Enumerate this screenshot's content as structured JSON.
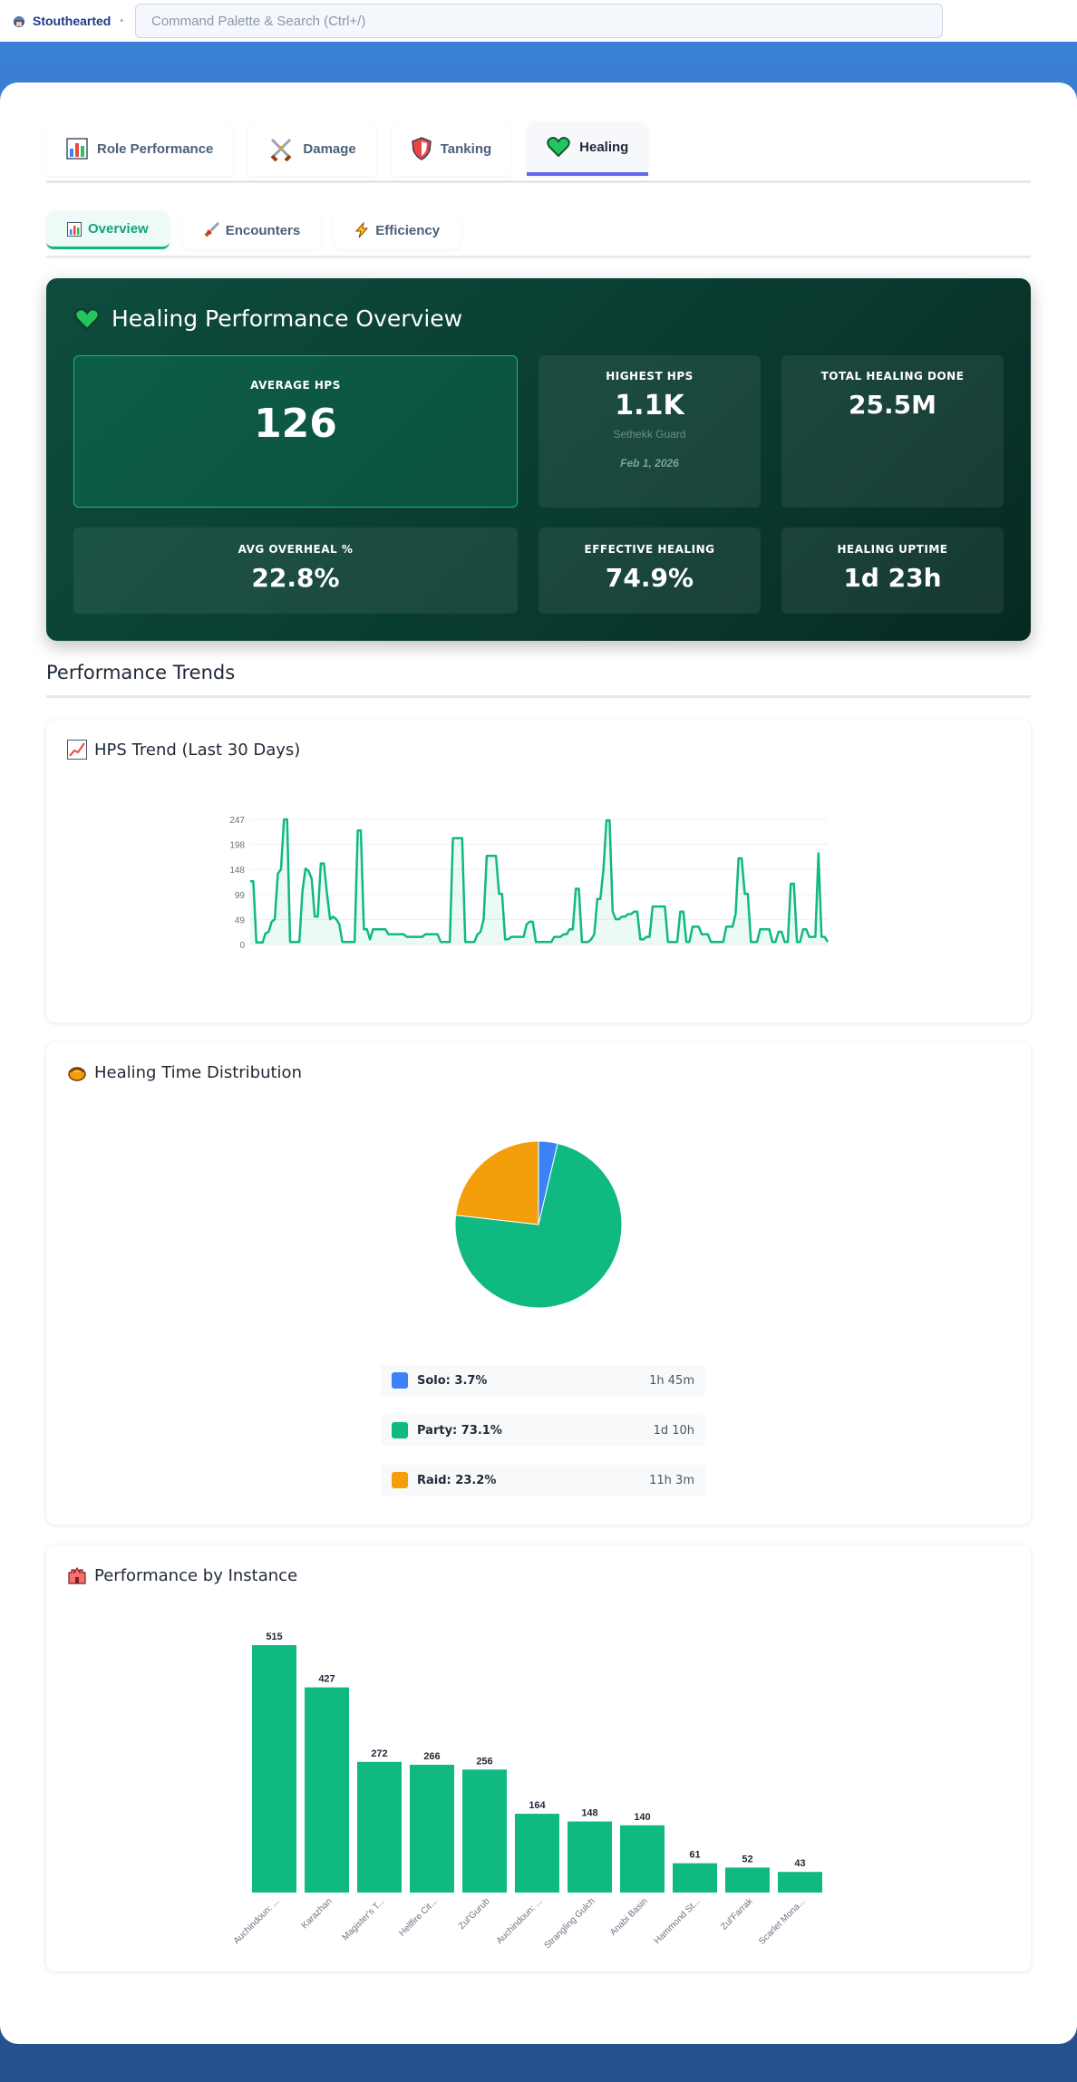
{
  "app": {
    "name": "Stouthearted",
    "search_placeholder": "Command Palette & Search (Ctrl+/)"
  },
  "tabs": [
    {
      "label": "Role Performance",
      "icon": "bar-chart-icon"
    },
    {
      "label": "Damage",
      "icon": "crossed-swords-icon"
    },
    {
      "label": "Tanking",
      "icon": "shield-icon"
    },
    {
      "label": "Healing",
      "icon": "green-heart-icon",
      "active": true
    }
  ],
  "subtabs": [
    {
      "label": "Overview",
      "icon": "bar-chart-icon",
      "active": true
    },
    {
      "label": "Encounters",
      "icon": "dagger-icon"
    },
    {
      "label": "Efficiency",
      "icon": "lightning-icon"
    }
  ],
  "overview": {
    "title": "Healing Performance Overview",
    "average_hps": {
      "label": "AVERAGE HPS",
      "value": "126"
    },
    "highest_hps": {
      "label": "HIGHEST HPS",
      "value": "1.1K",
      "source": "Sethekk Guard",
      "date": "Feb 1, 2026"
    },
    "total_healing": {
      "label": "TOTAL HEALING DONE",
      "value": "25.5M"
    },
    "avg_overheal": {
      "label": "AVG OVERHEAL %",
      "value": "22.8%"
    },
    "effective_healing": {
      "label": "EFFECTIVE HEALING",
      "value": "74.9%"
    },
    "healing_uptime": {
      "label": "HEALING UPTIME",
      "value": "1d 23h"
    }
  },
  "section_title": "Performance Trends",
  "cards": {
    "hps_trend": {
      "title": "HPS Trend (Last 30 Days)"
    },
    "distribution": {
      "title": "Healing Time Distribution"
    },
    "by_instance": {
      "title": "Performance by Instance"
    }
  },
  "colors": {
    "accent": "#10b981",
    "solo": "#3b82f6",
    "party": "#10b981",
    "raid": "#f59e0b"
  },
  "chart_data": [
    {
      "type": "line",
      "title": "HPS Trend (Last 30 Days)",
      "ylim": [
        0,
        247
      ],
      "yticks": [
        "247",
        "198",
        "148",
        "99",
        "49",
        "0"
      ],
      "values": [
        125,
        125,
        4,
        4,
        4,
        22,
        25,
        45,
        50,
        140,
        148,
        248,
        248,
        5,
        5,
        5,
        5,
        105,
        150,
        145,
        130,
        55,
        55,
        160,
        160,
        100,
        50,
        55,
        50,
        40,
        5,
        5,
        5,
        5,
        5,
        225,
        225,
        30,
        30,
        10,
        30,
        30,
        30,
        30,
        30,
        20,
        20,
        20,
        20,
        20,
        20,
        15,
        15,
        15,
        15,
        15,
        15,
        20,
        20,
        20,
        20,
        20,
        5,
        5,
        5,
        5,
        210,
        210,
        210,
        210,
        5,
        5,
        5,
        5,
        20,
        25,
        50,
        175,
        175,
        175,
        175,
        100,
        100,
        10,
        10,
        15,
        15,
        15,
        15,
        15,
        40,
        45,
        45,
        5,
        5,
        5,
        5,
        5,
        5,
        15,
        15,
        15,
        20,
        20,
        30,
        30,
        110,
        110,
        5,
        5,
        5,
        10,
        20,
        90,
        90,
        150,
        245,
        245,
        65,
        50,
        50,
        55,
        55,
        60,
        60,
        65,
        65,
        10,
        10,
        15,
        15,
        75,
        75,
        75,
        75,
        75,
        5,
        5,
        5,
        5,
        65,
        65,
        5,
        5,
        35,
        35,
        35,
        20,
        20,
        20,
        5,
        5,
        5,
        5,
        5,
        35,
        35,
        35,
        60,
        170,
        170,
        100,
        100,
        5,
        5,
        5,
        30,
        30,
        30,
        30,
        5,
        5,
        25,
        25,
        5,
        5,
        120,
        120,
        5,
        5,
        30,
        30,
        15,
        15,
        15,
        180,
        15,
        15,
        5
      ]
    },
    {
      "type": "pie",
      "title": "Healing Time Distribution",
      "slices": [
        {
          "label": "Solo: 3.7%",
          "value": 3.7,
          "duration": "1h 45m",
          "color": "#3b82f6"
        },
        {
          "label": "Party: 73.1%",
          "value": 73.1,
          "duration": "1d 10h",
          "color": "#10b981"
        },
        {
          "label": "Raid: 23.2%",
          "value": 23.2,
          "duration": "11h 3m",
          "color": "#f59e0b"
        }
      ]
    },
    {
      "type": "bar",
      "title": "Performance by Instance",
      "categories": [
        "Auchindoun: ...",
        "Karazhan",
        "Magister's T...",
        "Hellfire Cit...",
        "Zul'Gurub",
        "Auchindoun: ...",
        "Strangling Gulch",
        "Anabi Basin",
        "Hammond St...",
        "Zul'Farrak",
        "Scarlet Mona..."
      ],
      "values": [
        515,
        427,
        272,
        266,
        256,
        164,
        148,
        140,
        61,
        52,
        43
      ],
      "ylim": [
        0,
        515
      ]
    }
  ]
}
